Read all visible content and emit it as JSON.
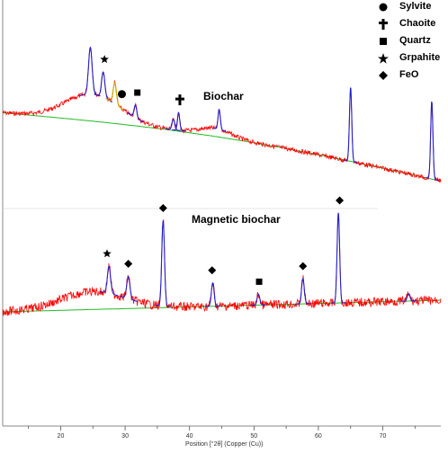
{
  "legend": {
    "items": [
      {
        "label": "Sylvite",
        "icon": "circle-icon"
      },
      {
        "label": "Chaoite",
        "icon": "cross-icon"
      },
      {
        "label": "Quartz",
        "icon": "square-icon"
      },
      {
        "label": "Grpahite",
        "icon": "star-icon"
      },
      {
        "label": "FeO",
        "icon": "diamond-icon"
      }
    ]
  },
  "chart_data": {
    "type": "line",
    "xlabel": "Position [°2θ] (Copper (Cu))",
    "xlim": [
      11,
      79
    ],
    "x_ticks": [
      20,
      30,
      40,
      50,
      60,
      70
    ],
    "colors": {
      "observed": "#ff0000",
      "peak_fit": "#2222cc",
      "background": "#22bb22",
      "sylvite_peak": "#ccaa00"
    },
    "series": [
      {
        "name": "Biochar",
        "baseline_y": 130,
        "hump": {
          "center": 25,
          "width": 6,
          "amp": 30
        },
        "hump2": {
          "center": 44,
          "width": 3.5,
          "amp": 9
        },
        "background_end_y": 206,
        "noise": 2.5,
        "peaks": [
          {
            "x": 24.6,
            "h": 52,
            "w": 0.4,
            "color": "blue"
          },
          {
            "x": 26.6,
            "h": 28,
            "w": 0.35,
            "color": "blue"
          },
          {
            "x": 28.4,
            "h": 24,
            "w": 0.35,
            "color": "gold"
          },
          {
            "x": 31.6,
            "h": 14,
            "w": 0.3,
            "color": "blue"
          },
          {
            "x": 37.5,
            "h": 12,
            "w": 0.3,
            "color": "blue"
          },
          {
            "x": 38.3,
            "h": 20,
            "w": 0.25,
            "color": "blue"
          },
          {
            "x": 44.6,
            "h": 22,
            "w": 0.25,
            "color": "blue"
          },
          {
            "x": 65.0,
            "h": 82,
            "w": 0.25,
            "color": "blue"
          },
          {
            "x": 77.6,
            "h": 86,
            "w": 0.25,
            "color": "blue"
          }
        ],
        "markers": [
          {
            "x": 26.8,
            "symbol": "star"
          },
          {
            "x": 29.5,
            "symbol": "circle"
          },
          {
            "x": 31.9,
            "symbol": "square"
          },
          {
            "x": 38.5,
            "symbol": "cross"
          }
        ]
      },
      {
        "name": "Magnetic biochar",
        "baseline_y": 350,
        "hump": {
          "center": 25,
          "width": 7,
          "amp": 20
        },
        "hump2": {
          "center": 44,
          "width": 3,
          "amp": 0
        },
        "background_end_y": 337,
        "noise": 5,
        "peaks": [
          {
            "x": 27.5,
            "h": 30,
            "w": 0.35,
            "color": "blue"
          },
          {
            "x": 30.5,
            "h": 25,
            "w": 0.35,
            "color": "blue"
          },
          {
            "x": 35.9,
            "h": 95,
            "w": 0.3,
            "color": "blue"
          },
          {
            "x": 43.6,
            "h": 26,
            "w": 0.3,
            "color": "blue"
          },
          {
            "x": 50.7,
            "h": 12,
            "w": 0.3,
            "color": "blue"
          },
          {
            "x": 57.6,
            "h": 28,
            "w": 0.3,
            "color": "blue"
          },
          {
            "x": 63.1,
            "h": 100,
            "w": 0.28,
            "color": "blue"
          },
          {
            "x": 74.0,
            "h": 8,
            "w": 0.3,
            "color": "blue"
          }
        ],
        "markers": [
          {
            "x": 27.2,
            "symbol": "star"
          },
          {
            "x": 30.5,
            "symbol": "diamond"
          },
          {
            "x": 35.9,
            "symbol": "diamond"
          },
          {
            "x": 43.5,
            "symbol": "diamond"
          },
          {
            "x": 50.8,
            "symbol": "square"
          },
          {
            "x": 57.6,
            "symbol": "diamond"
          },
          {
            "x": 63.3,
            "symbol": "diamond"
          }
        ]
      }
    ]
  }
}
